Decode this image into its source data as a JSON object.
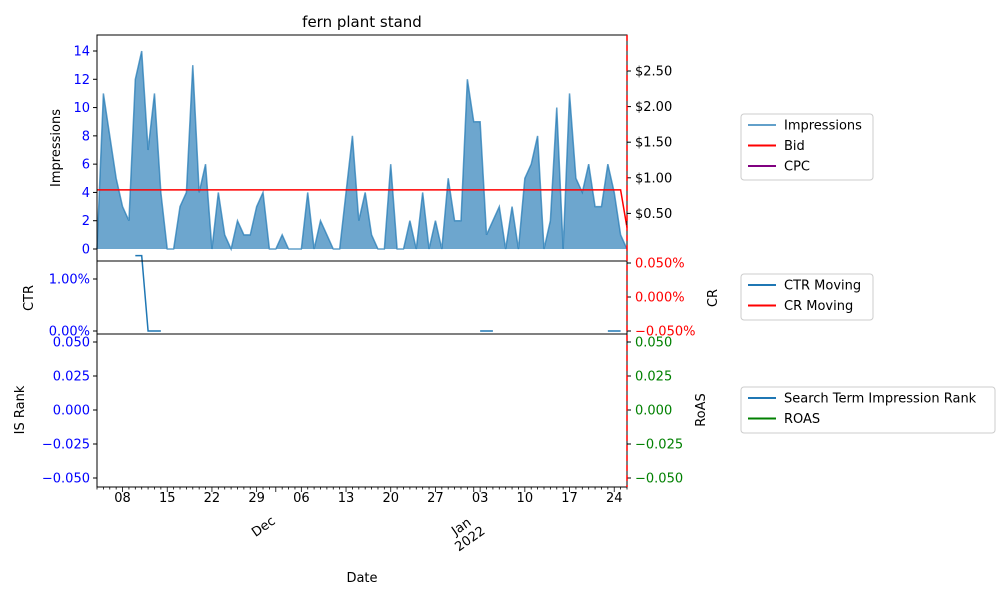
{
  "chart_data": {
    "type": "area",
    "title": "fern plant stand",
    "xlabel": "Date",
    "x_major_ticks": [
      "08",
      "15",
      "22",
      "29",
      "Dec",
      "06",
      "13",
      "20",
      "27",
      "Jan\n2022",
      "03",
      "10",
      "17",
      "24"
    ],
    "x_tick_rows": {
      "day_labels": [
        "08",
        "15",
        "22",
        "29",
        "06",
        "13",
        "20",
        "27",
        "03",
        "10",
        "17",
        "24"
      ],
      "month_labels": [
        "Dec",
        "Jan\n2022"
      ]
    },
    "panels": [
      {
        "name": "impressions-panel",
        "ylabel_left": "Impressions",
        "ylabel_right": "",
        "yticks_left": [
          "0",
          "2",
          "4",
          "6",
          "8",
          "10",
          "12",
          "14"
        ],
        "yticks_right": [
          "$0.50",
          "$1.00",
          "$1.50",
          "$2.00",
          "$2.50"
        ],
        "left_ylim": [
          0,
          14.7
        ],
        "right_ylim": [
          0,
          2.95
        ],
        "series": [
          {
            "name": "Impressions",
            "axis": "left",
            "color": "#1f77b4",
            "values": [
              0,
              11,
              8,
              5,
              3,
              2,
              12,
              14,
              7,
              11,
              4,
              0,
              0,
              3,
              4,
              13,
              4,
              6,
              0,
              4,
              1,
              0,
              2,
              1,
              1,
              3,
              4,
              0,
              0,
              1,
              0,
              0,
              0,
              4,
              0,
              2,
              1,
              0,
              0,
              4,
              8,
              2,
              4,
              1,
              0,
              0,
              6,
              0,
              0,
              2,
              0,
              4,
              0,
              2,
              0,
              5,
              2,
              2,
              12,
              9,
              9,
              1,
              2,
              3,
              0,
              3,
              0,
              5,
              6,
              8,
              0,
              2,
              10,
              0,
              11,
              5,
              4,
              6,
              3,
              3,
              6,
              4,
              1,
              0
            ]
          },
          {
            "name": "Bid",
            "axis": "right",
            "color": "#ff0000",
            "values": [
              0.83,
              0.83,
              0.83,
              0.83,
              0.83,
              0.83,
              0.83,
              0.83,
              0.83,
              0.83,
              0.83,
              0.83,
              0.83,
              0.83,
              0.83,
              0.83,
              0.83,
              0.83,
              0.83,
              0.83,
              0.83,
              0.83,
              0.83,
              0.83,
              0.83,
              0.83,
              0.83,
              0.83,
              0.83,
              0.83,
              0.83,
              0.83,
              0.83,
              0.83,
              0.83,
              0.83,
              0.83,
              0.83,
              0.83,
              0.83,
              0.83,
              0.83,
              0.83,
              0.83,
              0.83,
              0.83,
              0.83,
              0.83,
              0.83,
              0.83,
              0.83,
              0.83,
              0.83,
              0.83,
              0.83,
              0.83,
              0.83,
              0.83,
              0.83,
              0.83,
              0.83,
              0.83,
              0.83,
              0.83,
              0.83,
              0.83,
              0.83,
              0.83,
              0.83,
              0.83,
              0.83,
              0.83,
              0.83,
              0.83,
              0.83,
              0.83,
              0.83,
              0.83,
              0.83,
              0.83,
              0.83,
              0.83,
              0.83,
              0.3
            ]
          },
          {
            "name": "CPC",
            "axis": "right",
            "color": "#800080",
            "values": []
          }
        ]
      },
      {
        "name": "ctr-panel",
        "ylabel_left": "CTR",
        "ylabel_right": "CR",
        "yticks_left": [
          "0.00%",
          "1.00%"
        ],
        "yticks_right": [
          "−0.050%",
          "0.000%",
          "0.050%"
        ],
        "left_ylim": [
          0,
          1.5
        ],
        "right_ylim": [
          -0.05,
          0.05
        ],
        "series": [
          {
            "name": "CTR Moving",
            "axis": "left",
            "color": "#1f77b4",
            "segments": [
              {
                "start_index": 6,
                "values": [
                  1.45,
                  1.45,
                  0.0,
                  0.0,
                  0.0
                ]
              },
              {
                "start_index": 60,
                "values": [
                  0.0,
                  0.0,
                  0.0
                ]
              },
              {
                "start_index": 80,
                "values": [
                  0.0,
                  0.0,
                  0.0
                ]
              }
            ]
          },
          {
            "name": "CR Moving",
            "axis": "right",
            "color": "#ff0000",
            "values": []
          }
        ]
      },
      {
        "name": "rank-panel",
        "ylabel_left": "IS Rank",
        "ylabel_right": "RoAS",
        "yticks_left": [
          "−0.050",
          "−0.025",
          "0.000",
          "0.025",
          "0.050"
        ],
        "yticks_right": [
          "−0.050",
          "−0.025",
          "0.000",
          "0.025",
          "0.050"
        ],
        "left_ylim": [
          -0.055,
          0.055
        ],
        "right_ylim": [
          -0.055,
          0.055
        ],
        "series": [
          {
            "name": "Search Term Impression Rank",
            "axis": "left",
            "color": "#1f77b4",
            "values": []
          },
          {
            "name": "ROAS",
            "axis": "right",
            "color": "#008000",
            "values": []
          }
        ]
      }
    ],
    "legends": [
      {
        "name": "legend-top",
        "entries": [
          {
            "label": "Impressions",
            "color": "#1f77b4",
            "alpha": 0.7
          },
          {
            "label": "Bid",
            "color": "#ff0000"
          },
          {
            "label": "CPC",
            "color": "#800080"
          }
        ]
      },
      {
        "name": "legend-middle",
        "entries": [
          {
            "label": "CTR Moving",
            "color": "#1f77b4"
          },
          {
            "label": "CR Moving",
            "color": "#ff0000"
          }
        ]
      },
      {
        "name": "legend-bottom",
        "entries": [
          {
            "label": "Search Term Impression Rank",
            "color": "#1f77b4"
          },
          {
            "label": "ROAS",
            "color": "#008000"
          }
        ]
      }
    ],
    "colors": {
      "left_axis": "#0000ff",
      "right_axis_top": "#000000",
      "right_axis_ctr": "#ff0000",
      "right_axis_rank": "#008000",
      "red_dashed_line": "#ff0000"
    },
    "legend_placement": "right-outside",
    "grid": false
  }
}
